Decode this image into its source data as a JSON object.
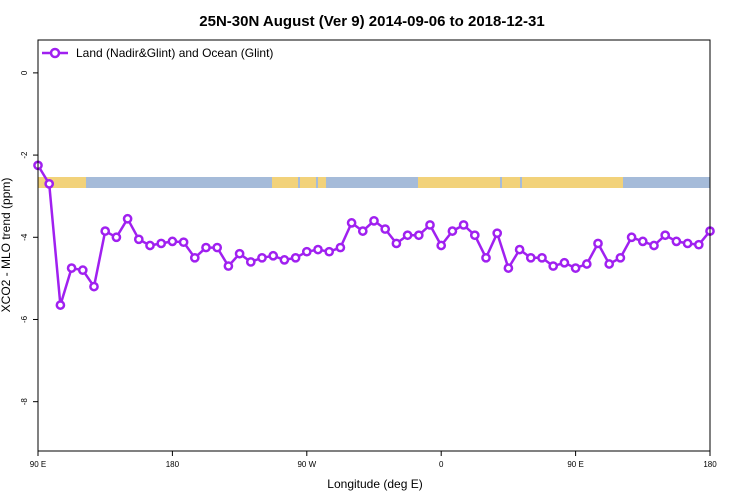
{
  "chart_data": {
    "type": "line",
    "title": "25N-30N August (Ver 9)   2014-09-06 to 2018-12-31",
    "xlabel": "Longitude (deg E)",
    "ylabel": "XCO2 - MLO trend (ppm)",
    "xlim": [
      90,
      540
    ],
    "ylim": [
      -9.2,
      0.8
    ],
    "x_ticks": [
      {
        "value": 90,
        "label": "90 E"
      },
      {
        "value": 180,
        "label": "180"
      },
      {
        "value": 270,
        "label": "90 W"
      },
      {
        "value": 360,
        "label": "0"
      },
      {
        "value": 450,
        "label": "90 E"
      },
      {
        "value": 540,
        "label": "180"
      }
    ],
    "y_ticks": [
      {
        "value": 0,
        "label": "0"
      },
      {
        "value": -2,
        "label": "-2"
      },
      {
        "value": -4,
        "label": "-4"
      },
      {
        "value": -6,
        "label": "-6"
      },
      {
        "value": -8,
        "label": "-8"
      }
    ],
    "grid": false,
    "legend_position": "top-left",
    "series": [
      {
        "name": "Land (Nadir&Glint) and Ocean (Glint)",
        "color": "#a020f0",
        "x": [
          90,
          97.5,
          105,
          112.5,
          120,
          127.5,
          135,
          142.5,
          150,
          157.5,
          165,
          172.5,
          180,
          187.5,
          195,
          202.5,
          210,
          217.5,
          225,
          232.5,
          240,
          247.5,
          255,
          262.5,
          270,
          277.5,
          285,
          292.5,
          300,
          307.5,
          315,
          322.5,
          330,
          337.5,
          345,
          352.5,
          360,
          367.5,
          375,
          382.5,
          390,
          397.5,
          405,
          412.5,
          420,
          427.5,
          435,
          442.5,
          450,
          457.5,
          465,
          472.5,
          480,
          487.5,
          495,
          502.5,
          510,
          517.5,
          525,
          532.5,
          540
        ],
        "y": [
          -2.25,
          -2.7,
          -5.65,
          -4.75,
          -4.8,
          -5.2,
          -3.85,
          -4.0,
          -3.55,
          -4.05,
          -4.2,
          -4.15,
          -4.1,
          -4.12,
          -4.5,
          -4.25,
          -4.25,
          -4.7,
          -4.4,
          -4.6,
          -4.5,
          -4.45,
          -4.55,
          -4.5,
          -4.35,
          -4.3,
          -4.35,
          -4.25,
          -3.65,
          -3.85,
          -3.6,
          -3.8,
          -4.15,
          -3.95,
          -3.95,
          -3.7,
          -4.2,
          -3.85,
          -3.7,
          -3.95,
          -4.5,
          -3.9,
          -4.75,
          -4.3,
          -4.5,
          -4.5,
          -4.7,
          -4.62,
          -4.75,
          -4.65,
          -4.15,
          -4.65,
          -4.5,
          -4.0,
          -4.1,
          -4.2,
          -3.95,
          -4.1,
          -4.15,
          -4.18,
          -3.85
        ]
      }
    ]
  }
}
